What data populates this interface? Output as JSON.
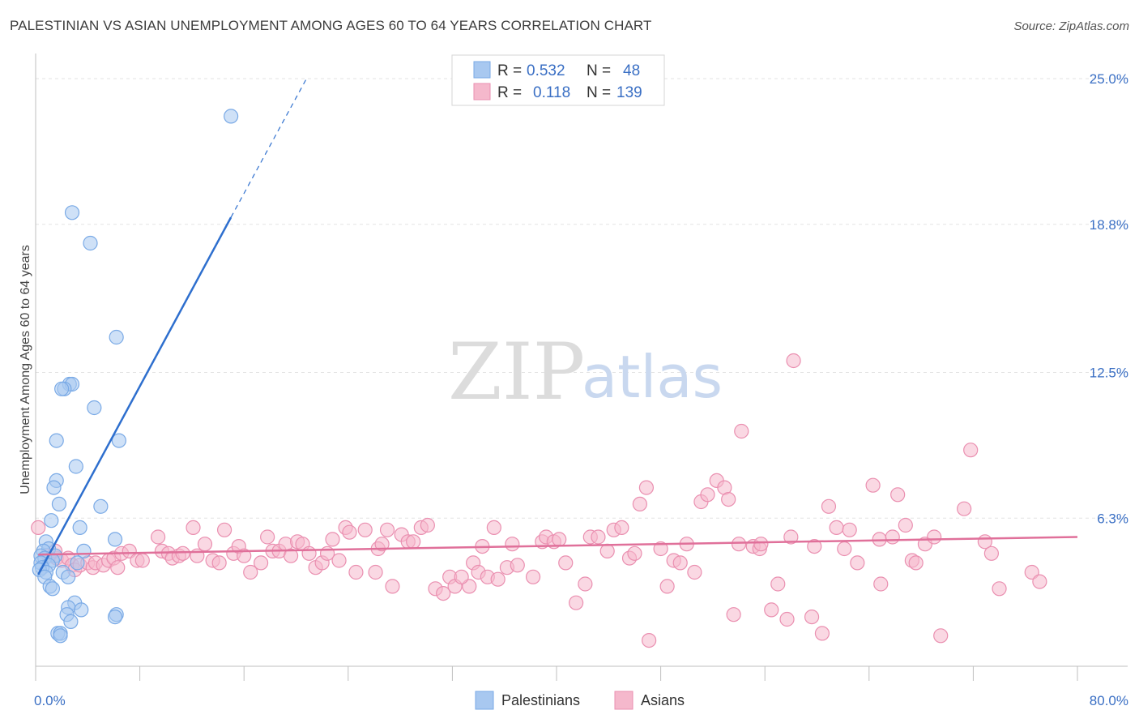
{
  "header": {
    "title": "PALESTINIAN VS ASIAN UNEMPLOYMENT AMONG AGES 60 TO 64 YEARS CORRELATION CHART",
    "source": "Source: ZipAtlas.com"
  },
  "watermark": {
    "part1": "ZIP",
    "part2": "atlas"
  },
  "chart_data": {
    "type": "scatter",
    "title": "PALESTINIAN VS ASIAN UNEMPLOYMENT AMONG AGES 60 TO 64 YEARS CORRELATION CHART",
    "xlabel": "",
    "ylabel": "Unemployment Among Ages 60 to 64 years",
    "xlim": [
      0,
      80
    ],
    "ylim": [
      0,
      25
    ],
    "x_tick_labels": {
      "left": "0.0%",
      "right": "80.0%"
    },
    "y_ticks": [
      {
        "value": 6.3,
        "label": "6.3%"
      },
      {
        "value": 12.5,
        "label": "12.5%"
      },
      {
        "value": 18.8,
        "label": "18.8%"
      },
      {
        "value": 25.0,
        "label": "25.0%"
      }
    ],
    "legend": {
      "placement": "top-center",
      "rows": [
        {
          "r_label": "R =",
          "r_value": "0.532",
          "n_label": "N =",
          "n_value": "48",
          "color": "#a8c8f0"
        },
        {
          "r_label": "R =",
          "r_value": "0.118",
          "n_label": "N =",
          "n_value": "139",
          "color": "#f5b8cc"
        }
      ]
    },
    "series": [
      {
        "name": "Palestinians",
        "color": "#7aaae6",
        "fill": "#a8c8f0",
        "trend": {
          "x0": 0.2,
          "y0": 3.9,
          "x1": 15.0,
          "y1": 19.1,
          "dash_to_x": 20.8,
          "dash_to_y": 25.0,
          "color": "#2e6fce"
        },
        "points": [
          [
            15.0,
            23.4
          ],
          [
            2.8,
            19.3
          ],
          [
            4.2,
            18.0
          ],
          [
            6.2,
            14.0
          ],
          [
            2.6,
            12.0
          ],
          [
            2.8,
            12.0
          ],
          [
            2.2,
            11.8
          ],
          [
            2.0,
            11.8
          ],
          [
            4.5,
            11.0
          ],
          [
            1.6,
            9.6
          ],
          [
            6.4,
            9.6
          ],
          [
            3.1,
            8.5
          ],
          [
            1.6,
            7.9
          ],
          [
            1.4,
            7.6
          ],
          [
            1.8,
            6.9
          ],
          [
            5.0,
            6.8
          ],
          [
            1.2,
            6.2
          ],
          [
            3.4,
            5.9
          ],
          [
            6.1,
            5.4
          ],
          [
            0.8,
            5.3
          ],
          [
            1.0,
            5.0
          ],
          [
            3.7,
            4.9
          ],
          [
            0.6,
            4.9
          ],
          [
            0.4,
            4.7
          ],
          [
            1.5,
            4.7
          ],
          [
            0.7,
            4.6
          ],
          [
            1.3,
            4.5
          ],
          [
            0.4,
            4.4
          ],
          [
            3.2,
            4.4
          ],
          [
            1.0,
            4.3
          ],
          [
            0.5,
            4.2
          ],
          [
            0.3,
            4.1
          ],
          [
            0.8,
            4.0
          ],
          [
            2.1,
            4.0
          ],
          [
            2.5,
            3.8
          ],
          [
            0.7,
            3.8
          ],
          [
            1.1,
            3.4
          ],
          [
            1.3,
            3.3
          ],
          [
            3.0,
            2.7
          ],
          [
            2.5,
            2.5
          ],
          [
            3.5,
            2.4
          ],
          [
            2.4,
            2.2
          ],
          [
            6.2,
            2.2
          ],
          [
            6.1,
            2.1
          ],
          [
            2.7,
            1.9
          ],
          [
            1.7,
            1.4
          ],
          [
            1.9,
            1.4
          ],
          [
            1.9,
            1.3
          ]
        ]
      },
      {
        "name": "Asians",
        "color": "#ea8fb0",
        "fill": "#f5b8cc",
        "trend": {
          "x0": 0.2,
          "y0": 4.75,
          "x1": 80.0,
          "y1": 5.5,
          "color": "#e0709a"
        },
        "points": [
          [
            0.2,
            5.9
          ],
          [
            1.0,
            4.7
          ],
          [
            1.6,
            4.6
          ],
          [
            1.5,
            4.9
          ],
          [
            2.0,
            4.5
          ],
          [
            2.5,
            4.6
          ],
          [
            2.8,
            4.3
          ],
          [
            3.0,
            4.1
          ],
          [
            3.4,
            4.3
          ],
          [
            4.0,
            4.4
          ],
          [
            4.4,
            4.2
          ],
          [
            4.6,
            4.4
          ],
          [
            5.2,
            4.3
          ],
          [
            5.6,
            4.5
          ],
          [
            6.0,
            4.6
          ],
          [
            6.3,
            4.2
          ],
          [
            6.6,
            4.8
          ],
          [
            7.2,
            4.9
          ],
          [
            7.8,
            4.5
          ],
          [
            8.2,
            4.5
          ],
          [
            9.4,
            5.5
          ],
          [
            9.7,
            4.9
          ],
          [
            10.2,
            4.8
          ],
          [
            10.5,
            4.6
          ],
          [
            11.0,
            4.7
          ],
          [
            11.3,
            4.8
          ],
          [
            12.1,
            5.9
          ],
          [
            12.4,
            4.7
          ],
          [
            13.0,
            5.2
          ],
          [
            13.6,
            4.5
          ],
          [
            14.1,
            4.4
          ],
          [
            14.5,
            5.8
          ],
          [
            15.2,
            4.8
          ],
          [
            15.6,
            5.1
          ],
          [
            16.0,
            4.7
          ],
          [
            16.5,
            4.0
          ],
          [
            17.3,
            4.4
          ],
          [
            17.8,
            5.5
          ],
          [
            18.2,
            4.9
          ],
          [
            18.7,
            4.9
          ],
          [
            19.2,
            5.2
          ],
          [
            19.6,
            4.7
          ],
          [
            20.1,
            5.3
          ],
          [
            20.5,
            5.2
          ],
          [
            21.0,
            4.8
          ],
          [
            21.5,
            4.2
          ],
          [
            22.0,
            4.4
          ],
          [
            22.4,
            4.8
          ],
          [
            22.8,
            5.4
          ],
          [
            23.3,
            4.5
          ],
          [
            23.8,
            5.9
          ],
          [
            24.1,
            5.7
          ],
          [
            24.6,
            4.0
          ],
          [
            25.3,
            5.8
          ],
          [
            26.1,
            4.0
          ],
          [
            26.3,
            5.0
          ],
          [
            26.6,
            5.2
          ],
          [
            27.0,
            5.8
          ],
          [
            27.4,
            3.4
          ],
          [
            28.1,
            5.6
          ],
          [
            28.6,
            5.3
          ],
          [
            29.0,
            5.3
          ],
          [
            29.6,
            5.9
          ],
          [
            30.1,
            6.0
          ],
          [
            30.7,
            3.3
          ],
          [
            31.3,
            3.1
          ],
          [
            31.8,
            3.8
          ],
          [
            32.2,
            3.4
          ],
          [
            33.3,
            3.4
          ],
          [
            32.7,
            3.8
          ],
          [
            33.6,
            4.4
          ],
          [
            34.0,
            4.0
          ],
          [
            34.3,
            5.1
          ],
          [
            34.7,
            3.8
          ],
          [
            35.2,
            5.9
          ],
          [
            35.5,
            3.7
          ],
          [
            36.2,
            4.2
          ],
          [
            36.6,
            5.2
          ],
          [
            37.0,
            4.3
          ],
          [
            38.2,
            3.8
          ],
          [
            38.9,
            5.3
          ],
          [
            39.2,
            5.5
          ],
          [
            39.8,
            5.3
          ],
          [
            40.2,
            5.4
          ],
          [
            40.7,
            4.4
          ],
          [
            41.5,
            2.7
          ],
          [
            42.2,
            3.5
          ],
          [
            42.6,
            5.5
          ],
          [
            43.2,
            5.5
          ],
          [
            43.9,
            4.9
          ],
          [
            44.4,
            5.8
          ],
          [
            45.0,
            5.9
          ],
          [
            45.6,
            4.6
          ],
          [
            46.0,
            4.8
          ],
          [
            46.4,
            6.9
          ],
          [
            46.9,
            7.6
          ],
          [
            47.1,
            1.1
          ],
          [
            48.0,
            5.0
          ],
          [
            48.5,
            3.4
          ],
          [
            49.0,
            4.5
          ],
          [
            49.5,
            4.4
          ],
          [
            50.0,
            5.2
          ],
          [
            50.6,
            4.0
          ],
          [
            51.1,
            7.0
          ],
          [
            51.6,
            7.3
          ],
          [
            52.3,
            7.9
          ],
          [
            52.9,
            7.6
          ],
          [
            53.2,
            7.1
          ],
          [
            53.6,
            2.2
          ],
          [
            54.0,
            5.2
          ],
          [
            54.2,
            10.0
          ],
          [
            55.1,
            5.1
          ],
          [
            55.6,
            5.0
          ],
          [
            55.7,
            5.2
          ],
          [
            56.5,
            2.4
          ],
          [
            57.0,
            3.5
          ],
          [
            57.7,
            2.0
          ],
          [
            58.0,
            5.5
          ],
          [
            58.2,
            13.0
          ],
          [
            59.6,
            2.1
          ],
          [
            59.8,
            5.1
          ],
          [
            60.4,
            1.4
          ],
          [
            60.9,
            6.8
          ],
          [
            61.5,
            5.9
          ],
          [
            62.1,
            5.0
          ],
          [
            62.5,
            5.8
          ],
          [
            63.1,
            4.4
          ],
          [
            64.3,
            7.7
          ],
          [
            64.9,
            3.5
          ],
          [
            64.8,
            5.4
          ],
          [
            65.8,
            5.5
          ],
          [
            66.2,
            7.3
          ],
          [
            66.8,
            6.0
          ],
          [
            67.3,
            4.5
          ],
          [
            67.6,
            4.4
          ],
          [
            68.3,
            5.2
          ],
          [
            69.0,
            5.5
          ],
          [
            69.5,
            1.3
          ],
          [
            71.3,
            6.7
          ],
          [
            71.8,
            9.2
          ],
          [
            72.9,
            5.3
          ],
          [
            73.4,
            4.8
          ],
          [
            74.0,
            3.3
          ],
          [
            76.5,
            4.0
          ],
          [
            77.1,
            3.6
          ]
        ]
      }
    ]
  }
}
